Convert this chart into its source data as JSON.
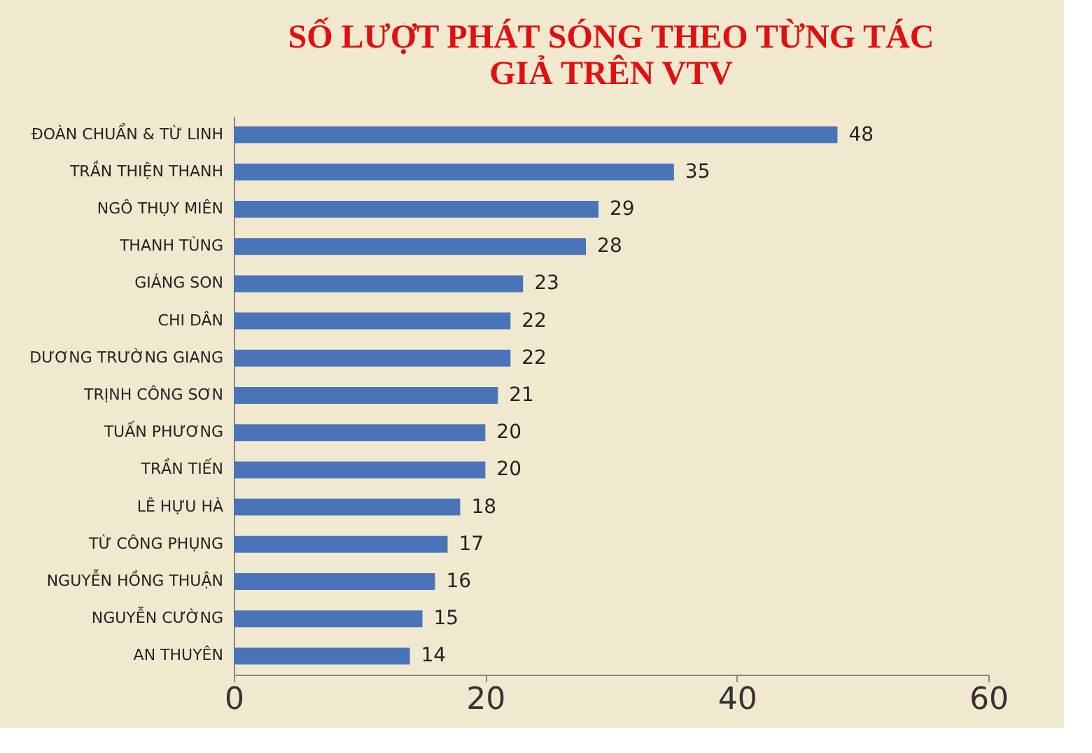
{
  "chart_data": {
    "type": "bar",
    "orientation": "horizontal",
    "title": "SỐ LƯỢT PHÁT SÓNG THEO TỪNG TÁC\nGIẢ TRÊN VTV",
    "categories": [
      "ĐOÀN CHUẨN & TỪ LINH",
      "TRẦN THIỆN THANH",
      "NGÔ THỤY MIÊN",
      "THANH TÙNG",
      "GIÁNG SON",
      "CHI DÂN",
      "DƯƠNG TRƯỜNG GIANG",
      "TRỊNH CÔNG SƠN",
      "TUẤN PHƯƠNG",
      "TRẦN TIẾN",
      "LÊ HỰU HÀ",
      "TỪ CÔNG PHỤNG",
      "NGUYỄN HỒNG THUẬN",
      "NGUYỄN CƯỜNG",
      "AN THUYÊN"
    ],
    "values": [
      48,
      35,
      29,
      28,
      23,
      22,
      22,
      21,
      20,
      20,
      18,
      17,
      16,
      15,
      14
    ],
    "color": "#4a74b8",
    "xlim": [
      0,
      60
    ],
    "xticks": [
      0,
      20,
      40,
      60
    ],
    "grid": false,
    "data_labels": true
  }
}
